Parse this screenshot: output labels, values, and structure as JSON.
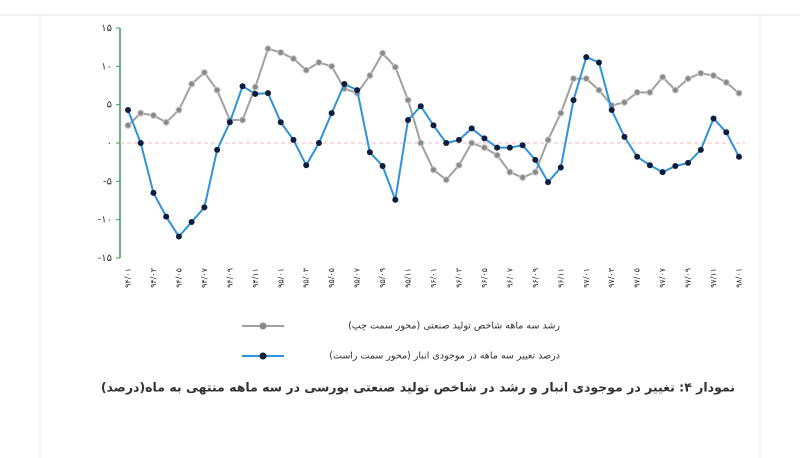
{
  "chart_data": {
    "type": "line",
    "caption": "نمودار ۴: تغییر در موجودی انبار و رشد در شاخص تولید صنعتی بورسی در سه ماهه منتهی به ماه(درصد)",
    "categories": [
      "۹۴/۰۱",
      null,
      "۹۴/۰۳",
      null,
      "۹۴/۰۵",
      null,
      "۹۴/۰۷",
      null,
      "۹۴/۰۹",
      null,
      "۹۴/۱۱",
      null,
      "۹۵/۰۱",
      null,
      "۹۵/۰۳",
      null,
      "۹۵/۰۵",
      null,
      "۹۵/۰۷",
      null,
      "۹۵/۰۹",
      null,
      "۹۵/۱۱",
      null,
      "۹۶/۰۱",
      null,
      "۹۶/۰۳",
      null,
      "۹۶/۰۵",
      null,
      "۹۶/۰۷",
      null,
      "۹۶/۰۹",
      null,
      "۹۶/۱۱",
      null,
      "۹۷/۰۱",
      null,
      "۹۷/۰۳",
      null,
      "۹۷/۰۵",
      null,
      "۹۷/۰۷",
      null,
      "۹۷/۰۹",
      null,
      "۹۷/۱۱",
      null,
      "۹۸/۰۱"
    ],
    "series": [
      {
        "name": "رشد سه ماهه شاخص تولید صنعتی (محور سمت چپ)",
        "color": "#a0a0a0",
        "marker_color": "#8a8a8a",
        "values": [
          2.3,
          3.9,
          3.6,
          2.7,
          4.3,
          7.7,
          9.2,
          6.9,
          3.0,
          3.0,
          7.3,
          12.3,
          11.8,
          11.0,
          9.5,
          10.5,
          10.0,
          7.1,
          6.5,
          8.8,
          11.7,
          9.9,
          5.6,
          0,
          -3.5,
          -4.8,
          -2.9,
          0,
          -0.6,
          -1.6,
          -3.8,
          -4.5,
          -3.8,
          0.4,
          3.9,
          8.4,
          8.4,
          6.9,
          4.9,
          5.3,
          6.6,
          6.6,
          8.6,
          6.9,
          8.4,
          9.1,
          8.8,
          7.9,
          6.5
        ]
      },
      {
        "name": "درصد تغییر سه ماهه در موجودی انبار (محور سمت راست)",
        "color": "#2e93d9",
        "marker_color": "#0f1d3d",
        "values": [
          4.3,
          0,
          -6.5,
          -9.6,
          -12.2,
          -10.3,
          -8.4,
          -0.9,
          2.7,
          7.4,
          6.4,
          6.5,
          2.7,
          0.4,
          -2.9,
          0,
          3.9,
          7.7,
          6.9,
          -1.2,
          -3.0,
          -7.4,
          3.0,
          4.8,
          2.3,
          0,
          0.4,
          1.9,
          0.6,
          -0.6,
          -0.6,
          -0.3,
          -2.2,
          -5.1,
          -3.2,
          5.6,
          11.2,
          10.5,
          4.3,
          0.8,
          -1.8,
          -2.9,
          -3.8,
          -3.0,
          -2.6,
          -0.9,
          3.2,
          1.4,
          -1.8
        ]
      }
    ],
    "ylim": [
      -15,
      15
    ],
    "yticks": [
      {
        "value": 15,
        "label": "۱۵"
      },
      {
        "value": 10,
        "label": "۱۰"
      },
      {
        "value": 5,
        "label": "۵"
      },
      {
        "value": 0,
        "label": "۰"
      },
      {
        "value": -5,
        "label": "-۵"
      },
      {
        "value": -10,
        "label": "-۱۰"
      },
      {
        "value": -15,
        "label": "-۱۵"
      }
    ],
    "axis_color": "#3a9a5a",
    "zero_line_color": "#f0b8c0"
  }
}
